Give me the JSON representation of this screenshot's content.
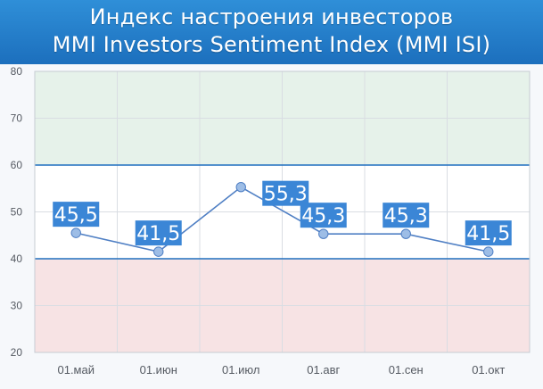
{
  "title": [
    "Индекс настроения инвесторов",
    "MMI Investors Sentiment Index (MMI ISI)"
  ],
  "chart_data": {
    "type": "line",
    "categories": [
      "01.май",
      "01.июн",
      "01.июл",
      "01.авг",
      "01.сен",
      "01.окт"
    ],
    "series": [
      {
        "values": [
          45.5,
          41.5,
          55.3,
          45.3,
          45.3,
          41.5
        ],
        "labels": [
          "45,5",
          "41,5",
          "55,3",
          "45,3",
          "45,3",
          "41,5"
        ]
      }
    ],
    "ylim": [
      20,
      80
    ],
    "yticks": [
      20,
      30,
      40,
      50,
      60,
      70,
      80
    ],
    "bands": [
      {
        "from": 60,
        "to": 80,
        "color": "#e6f2ea"
      },
      {
        "from": 40,
        "to": 60,
        "color": "#ffffff"
      },
      {
        "from": 20,
        "to": 40,
        "color": "#f7e3e4"
      }
    ],
    "band_border_color": "#1f6fbf",
    "line_color": "#4f7fc4",
    "marker_color": "#9dbde6",
    "label_bg": "#3b86d6",
    "label_text_color": "#ffffff",
    "grid": true
  }
}
